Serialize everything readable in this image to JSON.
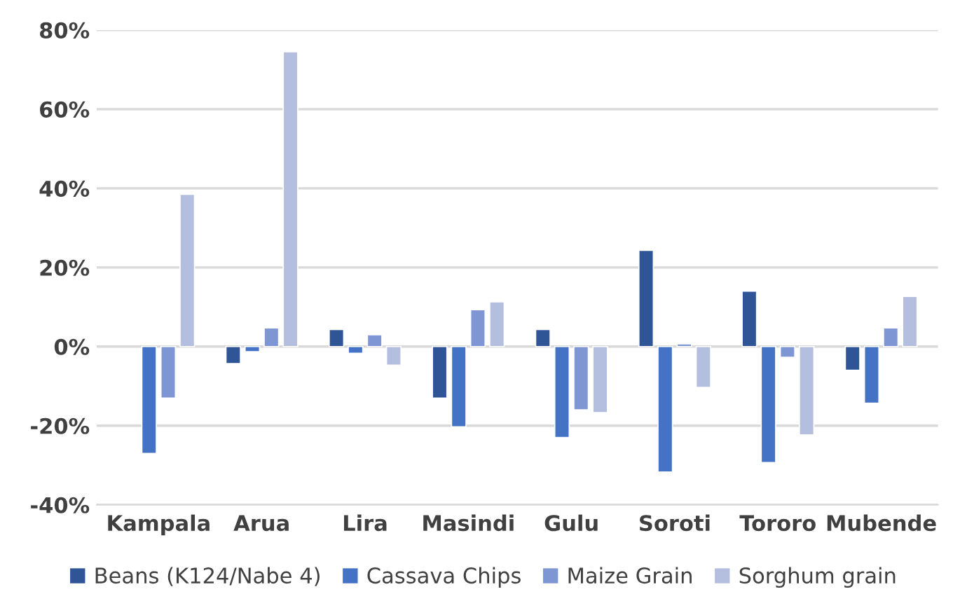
{
  "chart_data": {
    "type": "bar",
    "categories": [
      "Kampala",
      "Arua",
      "Lira",
      "Masindi",
      "Gulu",
      "Soroti",
      "Tororo",
      "Mubende"
    ],
    "series": [
      {
        "name": "Beans (K124/Nabe 4)",
        "color": "#2f5597",
        "values": [
          null,
          -4.3,
          4.3,
          -13,
          4.3,
          24.3,
          14,
          -6
        ]
      },
      {
        "name": "Cassava Chips",
        "color": "#4472c4",
        "values": [
          -27,
          -1.3,
          -1.7,
          -20.3,
          -23,
          -31.7,
          -29.3,
          -14.3
        ]
      },
      {
        "name": "Maize Grain",
        "color": "#7f96d4",
        "values": [
          -13,
          4.7,
          3,
          9.3,
          -16,
          0.7,
          -2.7,
          4.7
        ]
      },
      {
        "name": "Sorghum grain",
        "color": "#b4bfe0",
        "values": [
          38.5,
          74.5,
          -4.7,
          11.3,
          -16.7,
          -10.3,
          -22.3,
          12.7
        ]
      }
    ],
    "ylim": [
      -40,
      80
    ],
    "yticks": [
      {
        "value": -40,
        "label": "-40%"
      },
      {
        "value": -20,
        "label": "-20%"
      },
      {
        "value": 0,
        "label": "0%"
      },
      {
        "value": 20,
        "label": "20%"
      },
      {
        "value": 40,
        "label": "40%"
      },
      {
        "value": 60,
        "label": "60%"
      },
      {
        "value": 80,
        "label": "80%"
      }
    ],
    "grid": "y",
    "legend": "bottom"
  }
}
